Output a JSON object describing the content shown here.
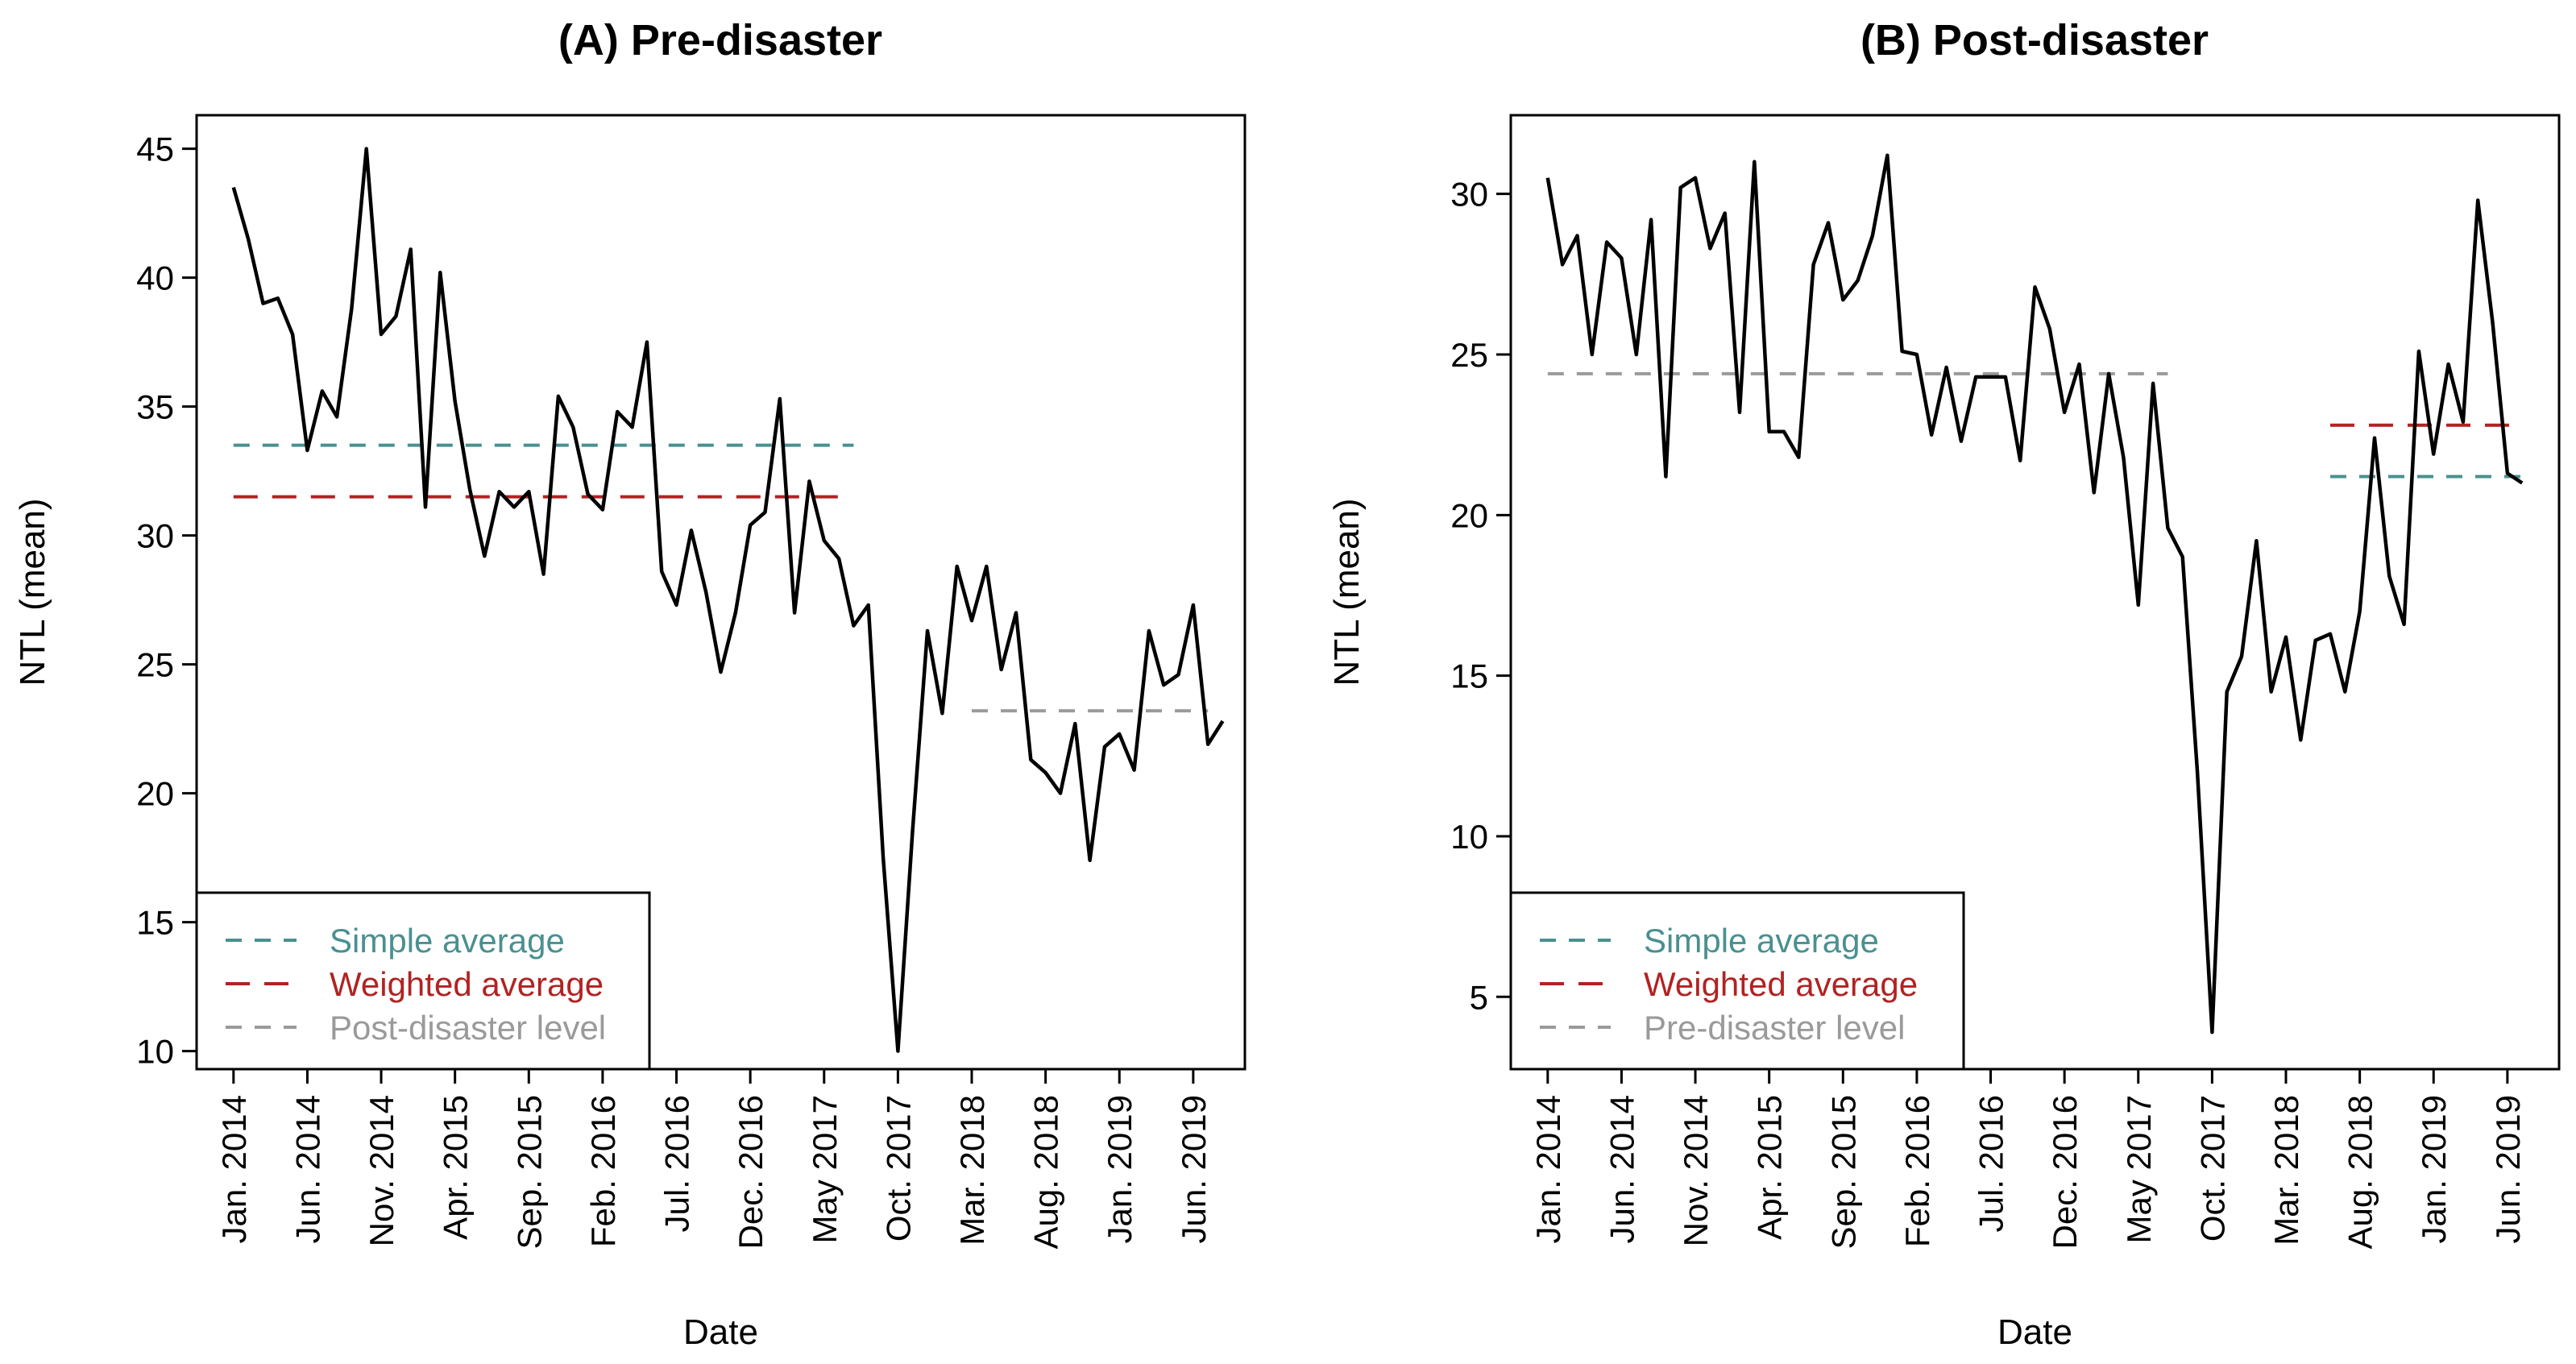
{
  "chart_data": [
    {
      "type": "line",
      "title": "(A) Pre-disaster",
      "xlabel": "Date",
      "ylabel": "NTL (mean)",
      "ylim": [
        9.3,
        46.3
      ],
      "yticks": [
        10,
        15,
        20,
        25,
        30,
        35,
        40,
        45
      ],
      "xticks": [
        {
          "index": 0,
          "label": "Jan. 2014"
        },
        {
          "index": 5,
          "label": "Jun. 2014"
        },
        {
          "index": 10,
          "label": "Nov. 2014"
        },
        {
          "index": 15,
          "label": "Apr. 2015"
        },
        {
          "index": 20,
          "label": "Sep. 2015"
        },
        {
          "index": 25,
          "label": "Feb. 2016"
        },
        {
          "index": 30,
          "label": "Jul. 2016"
        },
        {
          "index": 35,
          "label": "Dec. 2016"
        },
        {
          "index": 40,
          "label": "May 2017"
        },
        {
          "index": 45,
          "label": "Oct. 2017"
        },
        {
          "index": 50,
          "label": "Mar. 2018"
        },
        {
          "index": 55,
          "label": "Aug. 2018"
        },
        {
          "index": 60,
          "label": "Jan. 2019"
        },
        {
          "index": 65,
          "label": "Jun. 2019"
        }
      ],
      "xrange": [
        -2.5,
        68.5
      ],
      "series": [
        {
          "name": "NTL (mean)",
          "color": "#000000",
          "values": [
            43.5,
            41.5,
            39.0,
            39.2,
            37.8,
            33.3,
            35.6,
            34.6,
            38.8,
            45.0,
            37.8,
            38.5,
            41.1,
            31.1,
            40.2,
            35.2,
            31.8,
            29.2,
            31.7,
            31.1,
            31.7,
            28.5,
            35.4,
            34.2,
            31.6,
            31.0,
            34.8,
            34.2,
            37.5,
            28.6,
            27.3,
            30.2,
            27.8,
            24.7,
            27.0,
            30.4,
            30.9,
            35.3,
            27.0,
            32.1,
            29.8,
            29.1,
            26.5,
            27.3,
            17.5,
            10.0,
            18.6,
            26.3,
            23.1,
            28.8,
            26.7,
            28.8,
            24.8,
            27.0,
            21.3,
            20.8,
            20.0,
            22.7,
            17.4,
            21.8,
            22.3,
            20.9,
            26.3,
            24.2,
            24.6,
            27.3,
            21.9,
            22.8
          ]
        }
      ],
      "reference_lines": [
        {
          "name": "Simple average",
          "value": 33.5,
          "x_from": 0,
          "x_to": 42,
          "color": "#4a9090",
          "dash": "short"
        },
        {
          "name": "Weighted average",
          "value": 31.5,
          "x_from": 0,
          "x_to": 41,
          "color": "#b22222",
          "dash": "long"
        },
        {
          "name": "Post-disaster level",
          "value": 23.2,
          "x_from": 50,
          "x_to": 66,
          "color": "#9a9a9a",
          "dash": "short"
        }
      ],
      "legend": {
        "position": "bottom-left",
        "entries": [
          {
            "label": "Simple average",
            "color": "#4a9090",
            "dash": "short"
          },
          {
            "label": "Weighted average",
            "color": "#b22222",
            "dash": "long"
          },
          {
            "label": "Post-disaster level",
            "color": "#9a9a9a",
            "dash": "short"
          }
        ]
      }
    },
    {
      "type": "line",
      "title": "(B) Post-disaster",
      "xlabel": "Date",
      "ylabel": "NTL (mean)",
      "ylim": [
        2.75,
        32.45
      ],
      "yticks": [
        5,
        10,
        15,
        20,
        25,
        30
      ],
      "xticks": [
        {
          "index": 0,
          "label": "Jan. 2014"
        },
        {
          "index": 5,
          "label": "Jun. 2014"
        },
        {
          "index": 10,
          "label": "Nov. 2014"
        },
        {
          "index": 15,
          "label": "Apr. 2015"
        },
        {
          "index": 20,
          "label": "Sep. 2015"
        },
        {
          "index": 25,
          "label": "Feb. 2016"
        },
        {
          "index": 30,
          "label": "Jul. 2016"
        },
        {
          "index": 35,
          "label": "Dec. 2016"
        },
        {
          "index": 40,
          "label": "May 2017"
        },
        {
          "index": 45,
          "label": "Oct. 2017"
        },
        {
          "index": 50,
          "label": "Mar. 2018"
        },
        {
          "index": 55,
          "label": "Aug. 2018"
        },
        {
          "index": 60,
          "label": "Jan. 2019"
        },
        {
          "index": 65,
          "label": "Jun. 2019"
        }
      ],
      "xrange": [
        -2.5,
        68.5
      ],
      "series": [
        {
          "name": "NTL (mean)",
          "color": "#000000",
          "values": [
            30.5,
            27.8,
            28.7,
            25.0,
            28.5,
            28.0,
            25.0,
            29.2,
            21.2,
            30.2,
            30.5,
            28.3,
            29.4,
            23.2,
            31.0,
            22.6,
            22.6,
            21.8,
            27.8,
            29.1,
            26.7,
            27.3,
            28.7,
            31.2,
            25.1,
            25.0,
            22.5,
            24.6,
            22.3,
            24.3,
            24.3,
            24.3,
            21.7,
            27.1,
            25.8,
            23.2,
            24.7,
            20.7,
            24.4,
            21.8,
            17.2,
            24.1,
            19.6,
            18.7,
            12.0,
            3.9,
            14.5,
            15.6,
            19.2,
            14.5,
            16.2,
            13.0,
            16.1,
            16.3,
            14.5,
            17.0,
            22.4,
            18.1,
            16.6,
            25.1,
            21.9,
            24.7,
            22.9,
            29.8,
            26.0,
            21.3,
            21.0
          ]
        }
      ],
      "reference_lines": [
        {
          "name": "Pre-disaster level",
          "value": 24.4,
          "x_from": 0,
          "x_to": 42,
          "color": "#9a9a9a",
          "dash": "short"
        },
        {
          "name": "Weighted average",
          "value": 22.8,
          "x_from": 53,
          "x_to": 66,
          "color": "#b22222",
          "dash": "long"
        },
        {
          "name": "Simple average",
          "value": 21.2,
          "x_from": 53,
          "x_to": 66,
          "color": "#4a9090",
          "dash": "short"
        }
      ],
      "legend": {
        "position": "bottom-left",
        "entries": [
          {
            "label": "Simple average",
            "color": "#4a9090",
            "dash": "short"
          },
          {
            "label": "Weighted average",
            "color": "#b22222",
            "dash": "long"
          },
          {
            "label": "Pre-disaster level",
            "color": "#9a9a9a",
            "dash": "short"
          }
        ]
      }
    }
  ]
}
